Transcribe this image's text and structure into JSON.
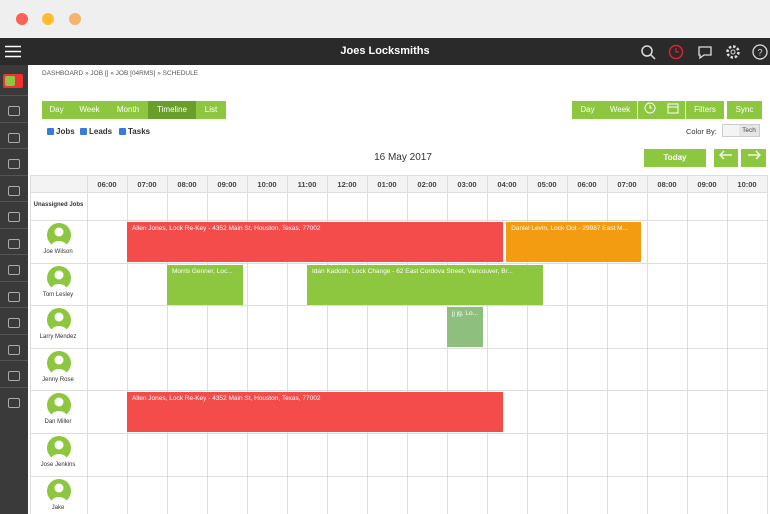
{
  "header": {
    "title": "Joes Locksmiths"
  },
  "breadcrumb": "DASHBOARD » JOB [] » JOB [04RMS] » SCHEDULE",
  "view_buttons": [
    "Day",
    "Week",
    "Month",
    "Timeline",
    "List"
  ],
  "right_buttons": [
    "Day",
    "Week",
    "Filters",
    "Sync"
  ],
  "filters": [
    "Jobs",
    "Leads",
    "Tasks"
  ],
  "color_by": {
    "label": "Color By:",
    "option": "Tech"
  },
  "date": "16 May 2017",
  "today_button": "Today",
  "schedule": {
    "columns": [
      "06:00",
      "07:00",
      "08:00",
      "09:00",
      "10:00",
      "11:00",
      "12:00",
      "01:00",
      "02:00",
      "03:00",
      "04:00",
      "05:00",
      "06:00",
      "07:00",
      "08:00",
      "09:00",
      "10:00"
    ],
    "unassigned_label": "Unassigned Jobs",
    "rows": [
      "Joe Wilson",
      "Tom Lesley",
      "Larry Mendez",
      "Jenny Rose",
      "Dan Miller",
      "Jose Jenkins",
      "Jake"
    ],
    "events": [
      {
        "label": "Allen Jones, Lock Re-Key - 4352 Main St, Houston, Texas, 77002"
      },
      {
        "label": "Daniel Levin, Lock Out - 29987 East M..."
      },
      {
        "label": "Morris Genner, Loc..."
      },
      {
        "label": "Idan Kadosh, Lock Change - 62 East Cordova Street, Vancouver, Br..."
      },
      {
        "label": "jj jg, Lo..."
      },
      {
        "label": "Allen Jones, Lock Re-Key - 4352 Main St, Houston, Texas, 77002"
      }
    ]
  }
}
